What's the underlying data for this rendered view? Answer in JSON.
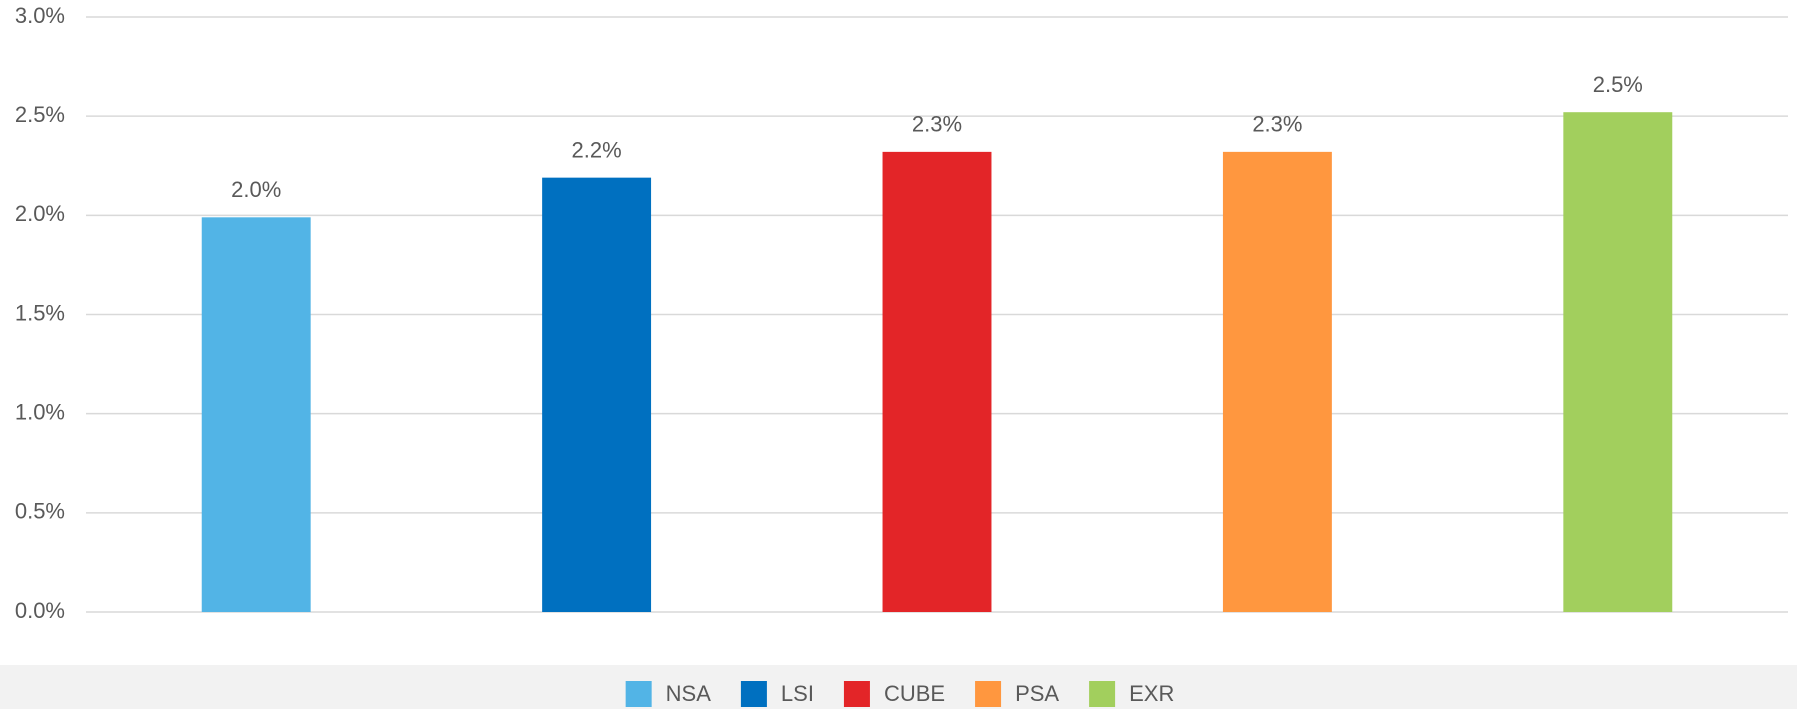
{
  "chart_data": {
    "type": "bar",
    "categories": [
      "NSA",
      "LSI",
      "CUBE",
      "PSA",
      "EXR"
    ],
    "values": [
      1.99,
      2.19,
      2.32,
      2.32,
      2.52
    ],
    "value_labels": [
      "2.0%",
      "2.2%",
      "2.3%",
      "2.3%",
      "2.5%"
    ],
    "colors": [
      "#52b4e6",
      "#0070c0",
      "#e32528",
      "#ff973f",
      "#a2cf5d"
    ],
    "ylim": [
      0,
      3
    ],
    "yticks": [
      {
        "value": 0,
        "label": "0.0%"
      },
      {
        "value": 0.5,
        "label": "0.5%"
      },
      {
        "value": 1,
        "label": "1.0%"
      },
      {
        "value": 1.5,
        "label": "1.5%"
      },
      {
        "value": 2,
        "label": "2.0%"
      },
      {
        "value": 2.5,
        "label": "2.5%"
      },
      {
        "value": 3,
        "label": "3.0%"
      }
    ],
    "grid": true,
    "legend": "bottom"
  }
}
